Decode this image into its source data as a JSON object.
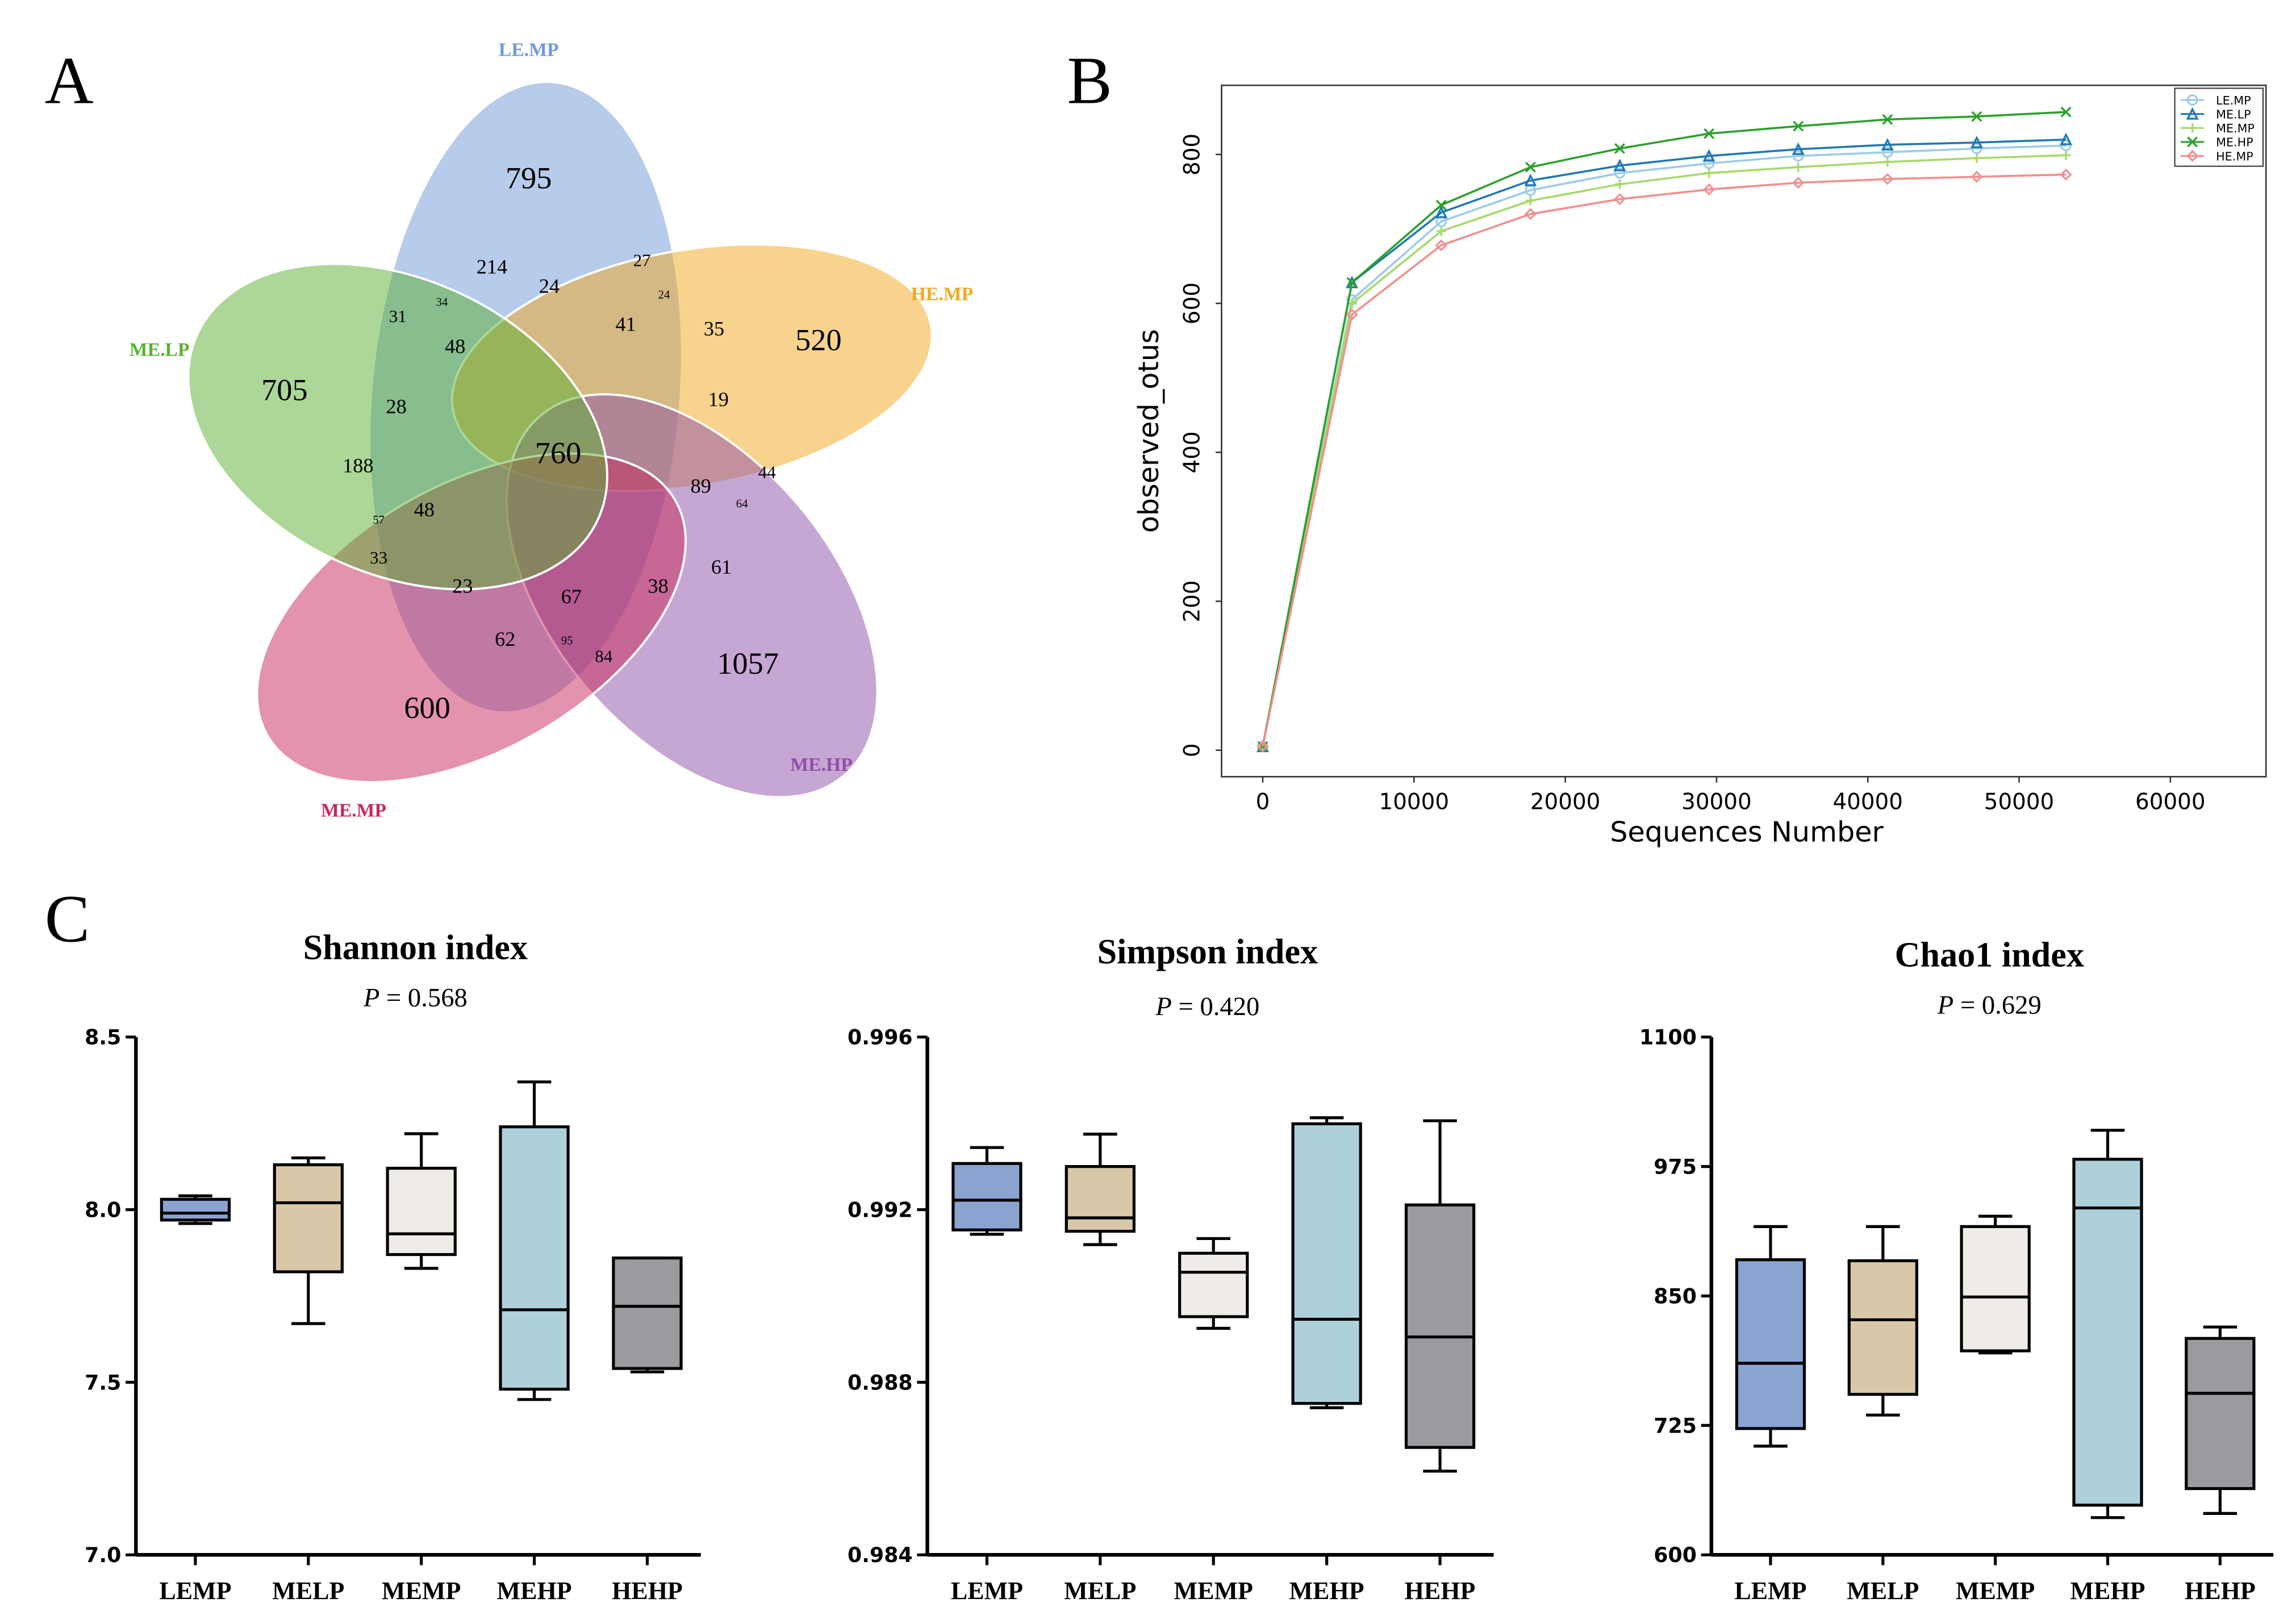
{
  "panels": {
    "a": "A",
    "b": "B",
    "c": "C"
  },
  "chart_data": [
    {
      "type": "venn",
      "sets": [
        {
          "name": "LE.MP",
          "color": "#6f98d6",
          "unique": 795
        },
        {
          "name": "HE.MP",
          "color": "#f2a81d",
          "unique": 520
        },
        {
          "name": "ME.HP",
          "color": "#8e4fa8",
          "unique": 1057
        },
        {
          "name": "ME.MP",
          "color": "#c8285a",
          "unique": 600
        },
        {
          "name": "ME.LP",
          "color": "#5ab031",
          "unique": 705
        }
      ],
      "intersection_labels": [
        760,
        214,
        24,
        27,
        24,
        34,
        31,
        48,
        41,
        35,
        19,
        28,
        188,
        89,
        44,
        64,
        57,
        48,
        33,
        23,
        67,
        38,
        61,
        62,
        95,
        84
      ]
    },
    {
      "type": "line",
      "ylabel": "observed_otus",
      "xlabel": "Sequences Number",
      "xlim": [
        0,
        65000
      ],
      "ylim": [
        0,
        880
      ],
      "xticks": [
        "0",
        "10000",
        "20000",
        "30000",
        "40000",
        "50000",
        "60000"
      ],
      "yticks": [
        "0",
        "200",
        "400",
        "600",
        "800"
      ],
      "legend": "top-right",
      "x": [
        0,
        5900,
        11800,
        17700,
        23600,
        29500,
        35400,
        41300,
        47200,
        53100
      ],
      "series": [
        {
          "name": "LE.MP",
          "color": "#9ccbe8",
          "marker": "circle",
          "values": [
            5,
            605,
            710,
            752,
            775,
            788,
            798,
            803,
            808,
            812
          ]
        },
        {
          "name": "ME.LP",
          "color": "#1f78b4",
          "marker": "triangle",
          "values": [
            5,
            628,
            722,
            765,
            785,
            798,
            807,
            813,
            816,
            820
          ]
        },
        {
          "name": "ME.MP",
          "color": "#a6d96a",
          "marker": "plus",
          "values": [
            5,
            600,
            697,
            738,
            760,
            775,
            783,
            790,
            795,
            799
          ]
        },
        {
          "name": "ME.HP",
          "color": "#2ca02c",
          "marker": "x",
          "values": [
            5,
            628,
            732,
            783,
            808,
            828,
            838,
            847,
            851,
            857
          ]
        },
        {
          "name": "HE.MP",
          "color": "#f28e8e",
          "marker": "diamond",
          "values": [
            5,
            585,
            678,
            720,
            740,
            753,
            762,
            767,
            770,
            773
          ]
        }
      ]
    },
    {
      "type": "box",
      "title": "Shannon  index",
      "p_label": "P",
      "p_value": " = 0.568",
      "ylim": [
        7.0,
        8.5
      ],
      "yticks": [
        "7.0",
        "7.5",
        "8.0",
        "8.5"
      ],
      "categories": [
        "LEMP",
        "MELP",
        "MEMP",
        "MEHP",
        "HEHP"
      ],
      "colors": [
        "#8ba3cf",
        "#d9c8a8",
        "#efebe6",
        "#aed0db",
        "#9a9b9e"
      ],
      "boxes": [
        {
          "min": 7.96,
          "q1": 7.97,
          "median": 7.99,
          "q3": 8.03,
          "max": 8.04
        },
        {
          "min": 7.67,
          "q1": 7.82,
          "median": 8.02,
          "q3": 8.13,
          "max": 8.15
        },
        {
          "min": 7.83,
          "q1": 7.87,
          "median": 7.93,
          "q3": 8.12,
          "max": 8.22
        },
        {
          "min": 7.45,
          "q1": 7.48,
          "median": 7.71,
          "q3": 8.24,
          "max": 8.37
        },
        {
          "min": 7.53,
          "q1": 7.54,
          "median": 7.72,
          "q3": 7.86,
          "max": 7.86
        }
      ]
    },
    {
      "type": "box",
      "title": "Simpson  index",
      "p_label": "P",
      "p_value": " = 0.420",
      "ylim": [
        0.984,
        0.996
      ],
      "yticks": [
        "0.984",
        "0.988",
        "0.992",
        "0.996"
      ],
      "categories": [
        "LEMP",
        "MELP",
        "MEMP",
        "MEHP",
        "HEHP"
      ],
      "colors": [
        "#8ba3cf",
        "#d9c8a8",
        "#efebe6",
        "#aed0db",
        "#9a9b9e"
      ],
      "boxes": [
        {
          "min": 0.99143,
          "q1": 0.99153,
          "median": 0.99222,
          "q3": 0.99307,
          "max": 0.99344
        },
        {
          "min": 0.99119,
          "q1": 0.9915,
          "median": 0.99181,
          "q3": 0.993,
          "max": 0.99375
        },
        {
          "min": 0.98925,
          "q1": 0.98952,
          "median": 0.99055,
          "q3": 0.99099,
          "max": 0.99133
        },
        {
          "min": 0.98741,
          "q1": 0.98751,
          "median": 0.98946,
          "q3": 0.99399,
          "max": 0.99413
        },
        {
          "min": 0.98594,
          "q1": 0.98649,
          "median": 0.98905,
          "q3": 0.99211,
          "max": 0.99406
        }
      ]
    },
    {
      "type": "box",
      "title": "Chao1  index",
      "p_label": "P",
      "p_value": " = 0.629",
      "ylim": [
        600,
        1100
      ],
      "yticks": [
        "600",
        "725",
        "850",
        "975",
        "1100"
      ],
      "categories": [
        "LEMP",
        "MELP",
        "MEMP",
        "MEHP",
        "HEHP"
      ],
      "colors": [
        "#8ba3cf",
        "#d9c8a8",
        "#efebe6",
        "#aed0db",
        "#9a9b9e"
      ],
      "boxes": [
        {
          "min": 705,
          "q1": 722,
          "median": 785,
          "q3": 885,
          "max": 917
        },
        {
          "min": 735,
          "q1": 755,
          "median": 827,
          "q3": 884,
          "max": 917
        },
        {
          "min": 795,
          "q1": 797,
          "median": 849,
          "q3": 917,
          "max": 927
        },
        {
          "min": 636,
          "q1": 648,
          "median": 935,
          "q3": 982,
          "max": 1010
        },
        {
          "min": 640,
          "q1": 664,
          "median": 756,
          "q3": 809,
          "max": 820
        }
      ]
    }
  ]
}
